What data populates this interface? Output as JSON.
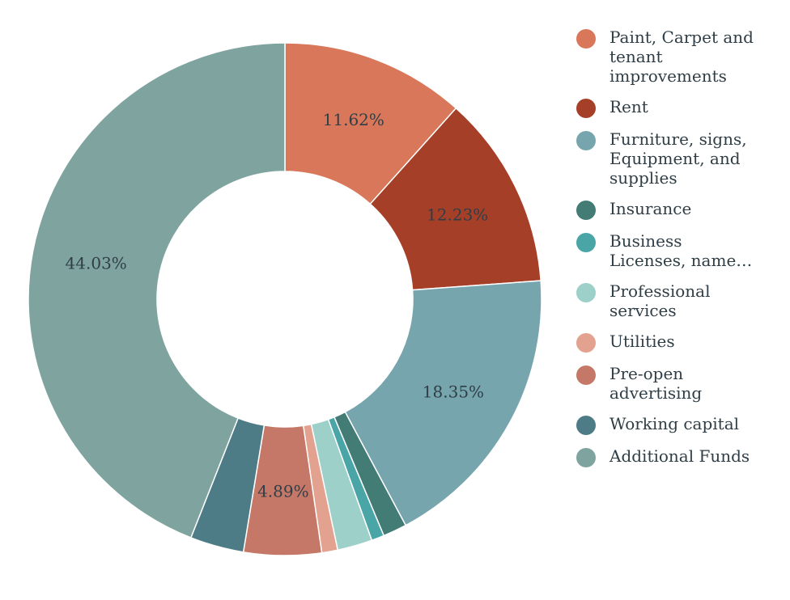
{
  "chart_data": {
    "type": "pie",
    "donut": true,
    "title": "",
    "categories": [
      "Paint, Carpet and tenant improvements",
      "Rent",
      "Furniture, signs, Equipment, and supplies",
      "Insurance",
      "Business Licenses, name…",
      "Professional services",
      "Utilities",
      "Pre-open advertising",
      "Working capital",
      "Additional Funds"
    ],
    "legend_labels": [
      "Paint, Carpet and\ntenant\nimprovements",
      "Rent",
      "Furniture, signs,\nEquipment, and\nsupplies",
      "Insurance",
      "Business\nLicenses, name…",
      "Professional\nservices",
      "Utilities",
      "Pre-open\nadvertising",
      "Working capital",
      "Additional Funds"
    ],
    "values": [
      11.62,
      12.23,
      18.35,
      1.5,
      0.8,
      2.2,
      1.0,
      4.89,
      3.38,
      44.03
    ],
    "data_labels": [
      "11.62%",
      "12.23%",
      "18.35%",
      "",
      "",
      "",
      "",
      "4.89%",
      "",
      "44.03%"
    ],
    "colors": [
      "#d9775a",
      "#a63f28",
      "#77a5ad",
      "#437b75",
      "#4aa5a7",
      "#9cd0c8",
      "#e3a18f",
      "#c57868",
      "#4d7b86",
      "#7fa49f"
    ],
    "legend_placement": "right"
  }
}
